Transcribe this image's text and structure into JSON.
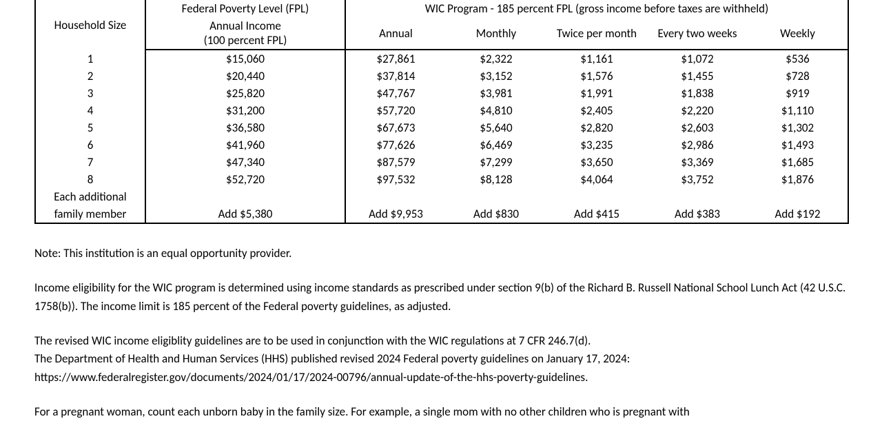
{
  "table": {
    "header": {
      "household": "Household Size",
      "fpl_title": "Federal Poverty Level (FPL)",
      "fpl_sub1": "Annual Income",
      "fpl_sub2": "(100 percent FPL)",
      "wic_title": "WIC Program - 185 percent FPL (gross income before taxes are withheld)",
      "wic_cols": [
        "Annual",
        "Monthly",
        "Twice per month",
        "Every two weeks",
        "Weekly"
      ]
    },
    "rows": [
      {
        "hh": "1",
        "fpl": "$15,060",
        "wic": [
          "$27,861",
          "$2,322",
          "$1,161",
          "$1,072",
          "$536"
        ]
      },
      {
        "hh": "2",
        "fpl": "$20,440",
        "wic": [
          "$37,814",
          "$3,152",
          "$1,576",
          "$1,455",
          "$728"
        ]
      },
      {
        "hh": "3",
        "fpl": "$25,820",
        "wic": [
          "$47,767",
          "$3,981",
          "$1,991",
          "$1,838",
          "$919"
        ]
      },
      {
        "hh": "4",
        "fpl": "$31,200",
        "wic": [
          "$57,720",
          "$4,810",
          "$2,405",
          "$2,220",
          "$1,110"
        ]
      },
      {
        "hh": "5",
        "fpl": "$36,580",
        "wic": [
          "$67,673",
          "$5,640",
          "$2,820",
          "$2,603",
          "$1,302"
        ]
      },
      {
        "hh": "6",
        "fpl": "$41,960",
        "wic": [
          "$77,626",
          "$6,469",
          "$3,235",
          "$2,986",
          "$1,493"
        ]
      },
      {
        "hh": "7",
        "fpl": "$47,340",
        "wic": [
          "$87,579",
          "$7,299",
          "$3,650",
          "$3,369",
          "$1,685"
        ]
      },
      {
        "hh": "8",
        "fpl": "$52,720",
        "wic": [
          "$97,532",
          "$8,128",
          "$4,064",
          "$3,752",
          "$1,876"
        ]
      }
    ],
    "additional": {
      "label_line1": "Each additional",
      "label_line2": "family member",
      "fpl": "Add $5,380",
      "wic": [
        "Add $9,953",
        "Add $830",
        "Add $415",
        "Add $383",
        "Add $192"
      ]
    }
  },
  "notes": {
    "p1": "Note:  This institution is an equal opportunity provider.",
    "p2": "Income eligibility for the WIC program is determined using income standards as prescribed under section 9(b) of the Richard B. Russell National School Lunch Act (42 U.S.C. 1758(b)).  The income limit is 185 percent of the Federal poverty guidelines, as adjusted.",
    "p3a": "The revised WIC income eligiblity guidelines are to be used in conjunction with the WIC regulations at 7 CFR 246.7(d).",
    "p3b": "The Department of Health and Human Services (HHS) published revised 2024 Federal poverty guidelines on January 17, 2024:",
    "p3c": "https://www.federalregister.gov/documents/2024/01/17/2024-00796/annual-update-of-the-hhs-poverty-guidelines.",
    "p4": "For a pregnant woman, count each unborn baby in the family size.  For example, a single mom with no other children who is pregnant with"
  },
  "style": {
    "border_color": "#000000",
    "background": "#ffffff",
    "text_color": "#000000",
    "font_family": "Calibri",
    "base_font_size_pt": 13
  }
}
